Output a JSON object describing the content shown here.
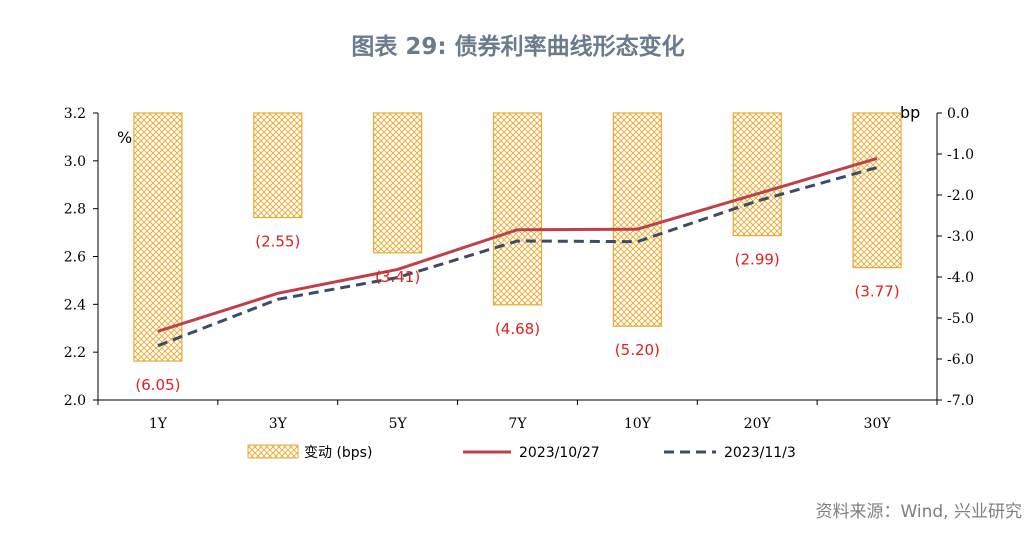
{
  "title": "图表 29: 债券利率曲线形态变化",
  "source": "资料来源：Wind, 兴业研究",
  "chart_data": {
    "type": "bar+line",
    "categories": [
      "1Y",
      "3Y",
      "5Y",
      "7Y",
      "10Y",
      "20Y",
      "30Y"
    ],
    "left_axis": {
      "unit": "%",
      "ylim": [
        2.0,
        3.2
      ],
      "ticks": [
        "2.0",
        "2.2",
        "2.4",
        "2.6",
        "2.8",
        "3.0",
        "3.2"
      ]
    },
    "right_axis": {
      "unit": "bp",
      "ylim": [
        -7.0,
        0.0
      ],
      "ticks": [
        "0.0",
        "-1.0",
        "-2.0",
        "-3.0",
        "-4.0",
        "-5.0",
        "-6.0",
        "-7.0"
      ]
    },
    "bars": {
      "name": "变动 (bps)",
      "axis": "right",
      "values": [
        -6.05,
        -2.55,
        -3.41,
        -4.68,
        -5.2,
        -2.99,
        -3.77
      ],
      "labels": [
        "(6.05)",
        "(2.55)",
        "(3.41)",
        "(4.68)",
        "(5.20)",
        "(2.99)",
        "(3.77)"
      ],
      "color": "#e8a93a"
    },
    "series": [
      {
        "name": "2023/10/27",
        "axis": "left",
        "style": "solid",
        "color": "#c0404a",
        "values": [
          2.287,
          2.446,
          2.546,
          2.712,
          2.714,
          2.862,
          3.01
        ]
      },
      {
        "name": "2023/11/3",
        "axis": "left",
        "style": "dashed",
        "color": "#3d4b66",
        "values": [
          2.227,
          2.421,
          2.512,
          2.665,
          2.662,
          2.832,
          2.972
        ]
      }
    ],
    "legend_position": "bottom"
  }
}
